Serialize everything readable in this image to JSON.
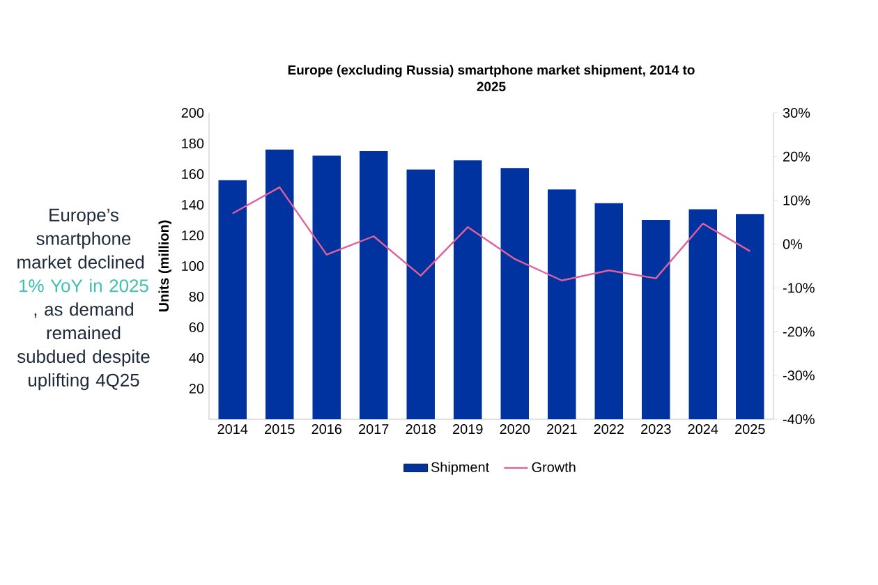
{
  "chart_data": {
    "type": "bar",
    "title": "Europe (excluding Russia) smartphone market shipment, 2014 to 2025",
    "ylabel": "Units (million)",
    "categories": [
      "2014",
      "2015",
      "2016",
      "2017",
      "2018",
      "2019",
      "2020",
      "2021",
      "2022",
      "2023",
      "2024",
      "2025"
    ],
    "series": [
      {
        "name": "Shipment",
        "color": "#0033a0",
        "values": [
          156,
          176,
          172,
          175,
          163,
          169,
          164,
          150,
          141,
          130,
          137,
          134
        ]
      },
      {
        "name": "Growth",
        "type": "line",
        "axis": "y2",
        "marker": "none",
        "color": "#e0609a",
        "values": [
          7,
          13,
          -2.4,
          1.8,
          -7.2,
          3.9,
          -3.4,
          -8.3,
          -6,
          -7.8,
          4.7,
          -1.6
        ]
      }
    ],
    "ylim": [
      0,
      200
    ],
    "yticks": [
      20,
      40,
      60,
      80,
      100,
      120,
      140,
      160,
      180,
      200
    ],
    "y2lim": [
      -40,
      30
    ],
    "y2ticks": [
      {
        "value": -40,
        "label": "-40%"
      },
      {
        "value": -30,
        "label": "-30%"
      },
      {
        "value": -20,
        "label": "-20%"
      },
      {
        "value": -10,
        "label": "-10%"
      },
      {
        "value": 0,
        "label": "0%"
      },
      {
        "value": 10,
        "label": "10%"
      },
      {
        "value": 20,
        "label": "20%"
      },
      {
        "value": 30,
        "label": "30%"
      }
    ],
    "legend": "bottom",
    "annotations": [
      "Europe’s smartphone market declined ",
      "1% YoY in 2025",
      ", as demand remained subdued despite uplifting 4Q25"
    ]
  }
}
